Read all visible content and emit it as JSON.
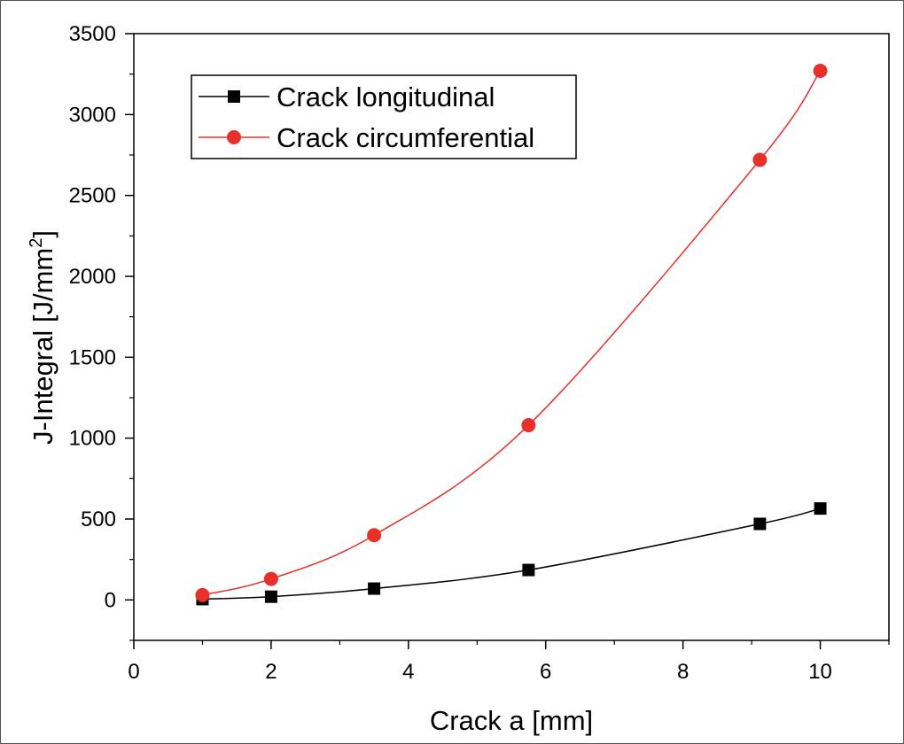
{
  "chart_data": {
    "type": "line",
    "xlabel": "Crack  a  [mm]",
    "ylabel_main": "J-Integral  [J/mm",
    "ylabel_sup": "2",
    "ylabel_close": "]",
    "xlim": [
      0,
      11
    ],
    "ylim": [
      -250,
      3500
    ],
    "xticks": [
      0,
      2,
      4,
      6,
      8,
      10
    ],
    "yticks": [
      0,
      500,
      1000,
      1500,
      2000,
      2500,
      3000,
      3500
    ],
    "xticklabels": [
      "0",
      "2",
      "4",
      "6",
      "8",
      "10"
    ],
    "yticklabels": [
      "0",
      "500",
      "1000",
      "1500",
      "2000",
      "2500",
      "3000",
      "3500"
    ],
    "grid": false,
    "legend_position": "top-left",
    "series": [
      {
        "name": "Crack longitudinal",
        "color": "#000000",
        "marker": "square",
        "x": [
          1,
          2,
          3.5,
          5.75,
          9.12,
          10
        ],
        "y": [
          5,
          20,
          70,
          185,
          470,
          565
        ]
      },
      {
        "name": "Crack circumferential",
        "color": "#e8302a",
        "marker": "circle",
        "x": [
          1,
          2,
          3.5,
          5.75,
          9.12,
          10
        ],
        "y": [
          30,
          130,
          400,
          1080,
          2720,
          3270
        ]
      }
    ]
  }
}
